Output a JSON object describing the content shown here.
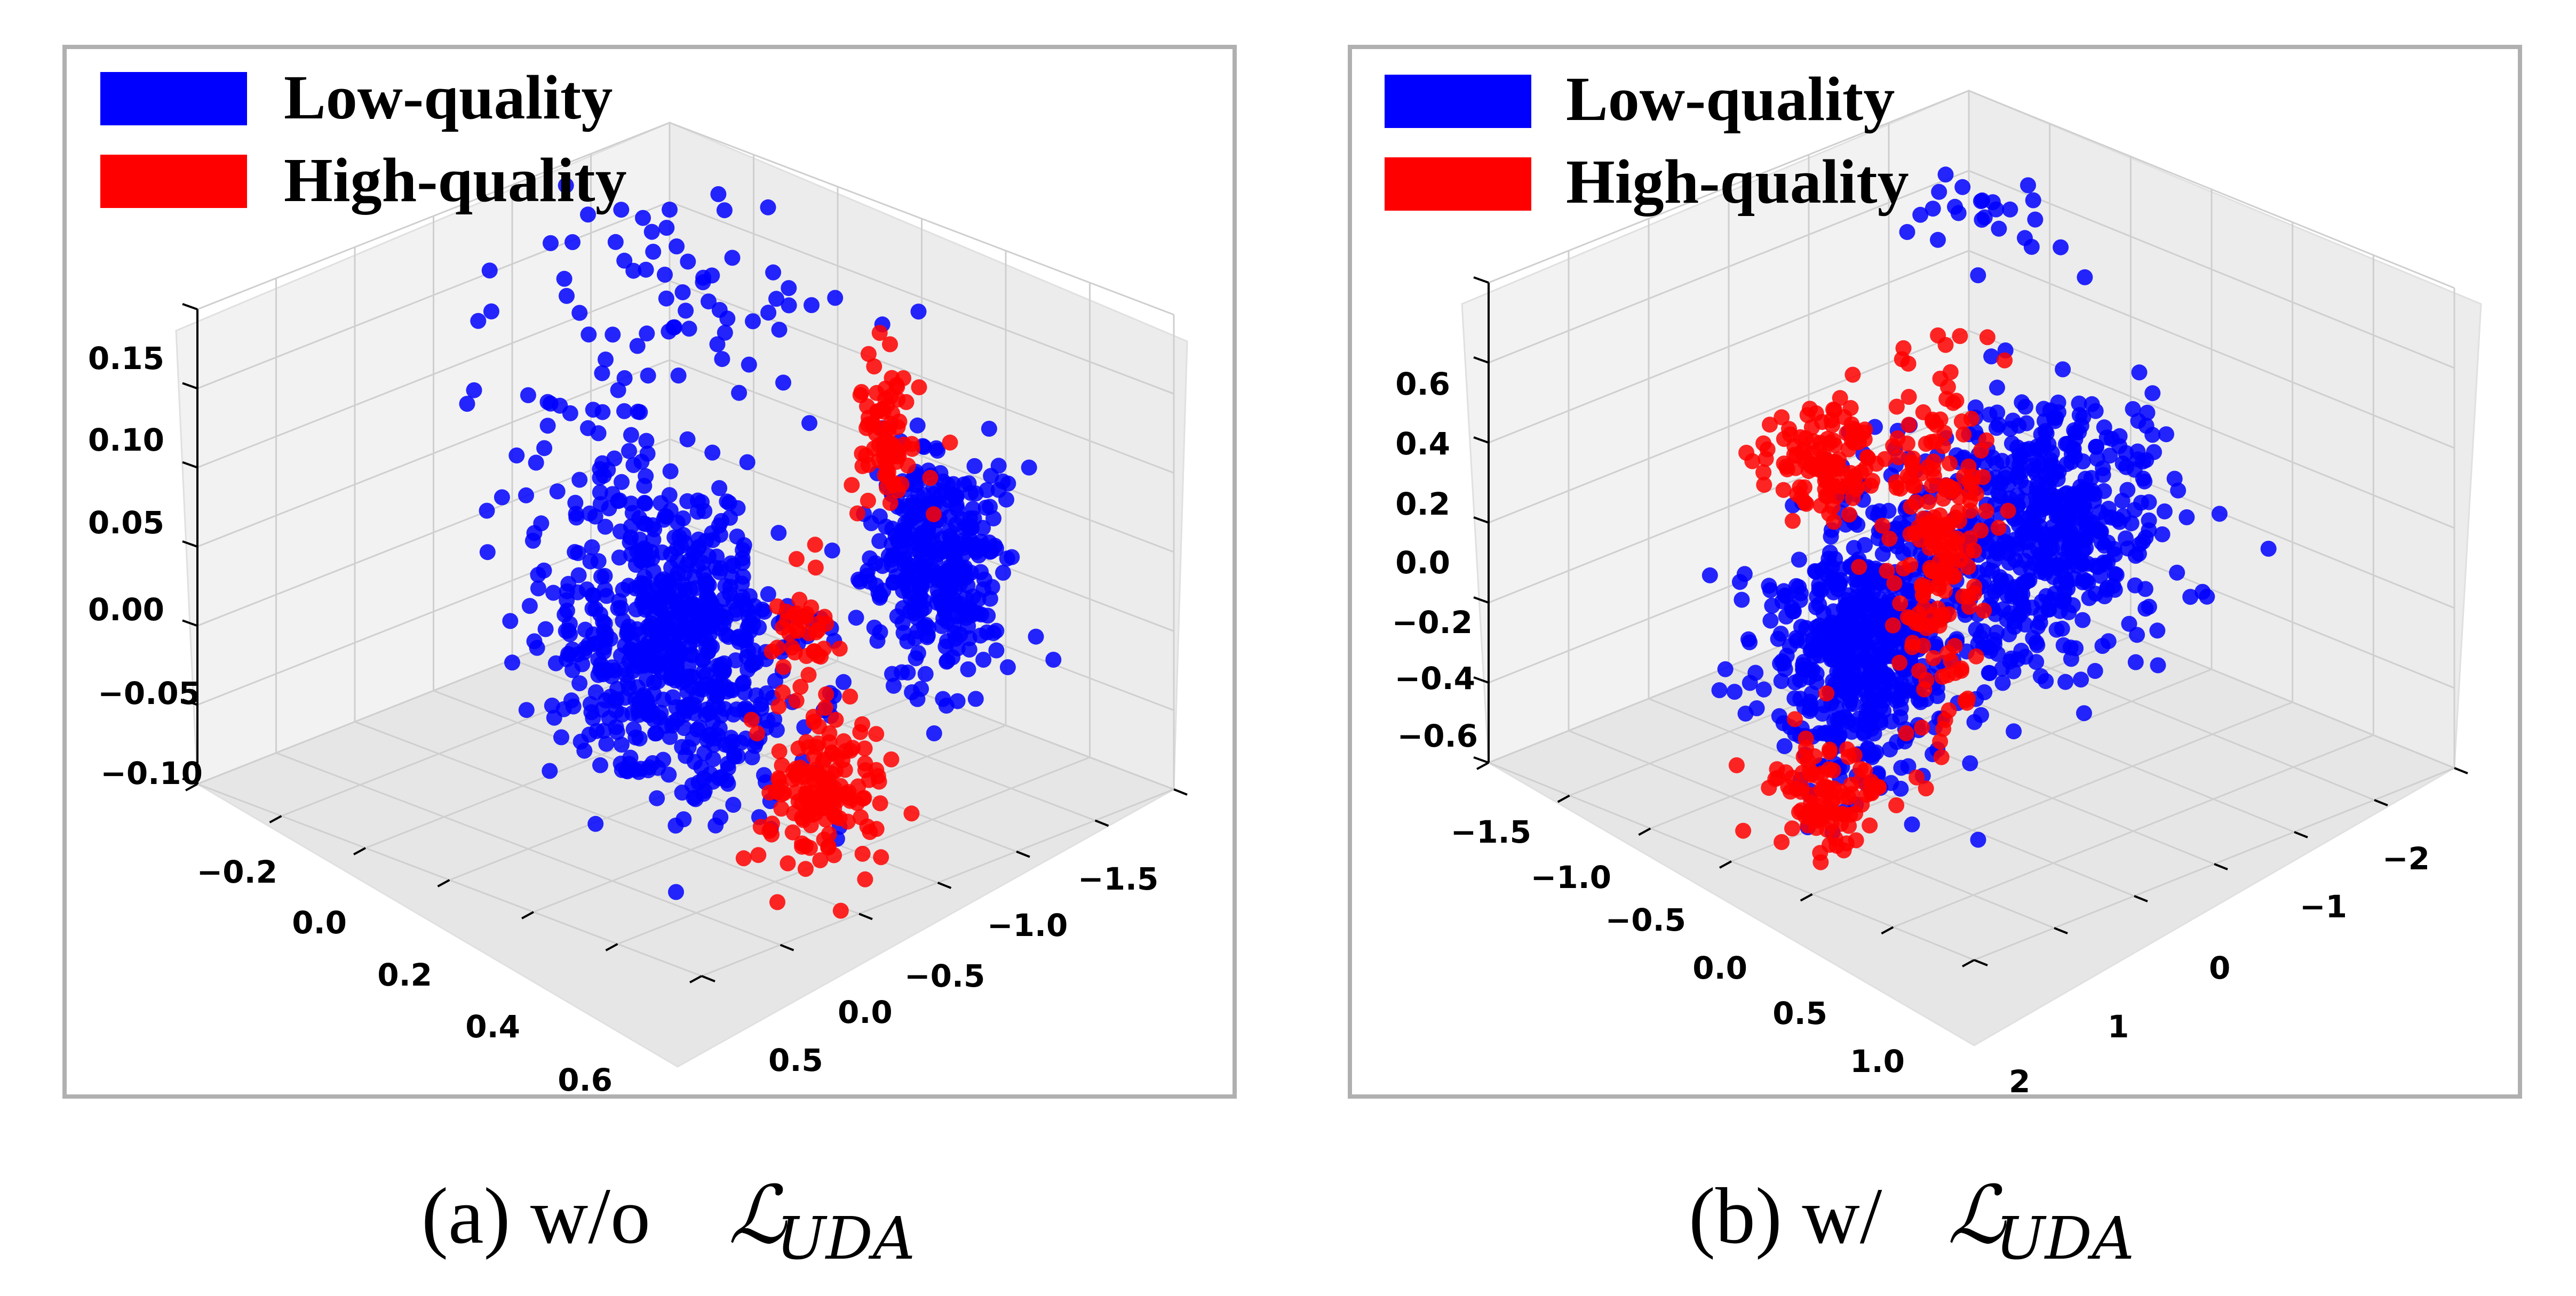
{
  "chart_data": [
    {
      "type": "scatter",
      "caption": {
        "prefix": "(a) w/o",
        "math": "ℒ",
        "sub": "UDA"
      },
      "legend": [
        {
          "label": "Low-quality",
          "color": "#0000ff"
        },
        {
          "label": "High-quality",
          "color": "#ff0000"
        }
      ],
      "z_ticks": [
        "0.15",
        "0.10",
        "0.05",
        "0.00",
        "−0.05",
        "−0.10"
      ],
      "x_ticks": [
        "−0.2",
        "0.0",
        "0.2",
        "0.4",
        "0.6"
      ],
      "y_ticks": [
        "−1.5",
        "−1.0",
        "−0.5",
        "0.0",
        "0.5"
      ],
      "xlim": [
        -0.3,
        0.7
      ],
      "ylim": [
        -1.7,
        0.7
      ],
      "zlim": [
        -0.1,
        0.15
      ],
      "series": [
        {
          "name": "Low-quality",
          "color": "#0000ff",
          "clusters": [
            {
              "x": 0.35,
              "y": -0.2,
              "z": 0.0,
              "sx": 0.07,
              "sy": 0.25,
              "sz": 0.035,
              "n": 650
            },
            {
              "x": 0.05,
              "y": 0.35,
              "z": 0.04,
              "sx": 0.05,
              "sy": 0.12,
              "sz": 0.03,
              "n": 350
            },
            {
              "x": -0.05,
              "y": -1.0,
              "z": 0.11,
              "sx": 0.15,
              "sy": 0.35,
              "sz": 0.02,
              "n": 60
            },
            {
              "x": 0.2,
              "y": -0.8,
              "z": 0.05,
              "sx": 0.12,
              "sy": 0.3,
              "sz": 0.04,
              "n": 70
            }
          ]
        },
        {
          "name": "High-quality",
          "color": "#ff0000",
          "clusters": [
            {
              "x": 0.38,
              "y": 0.55,
              "z": -0.04,
              "sx": 0.05,
              "sy": 0.08,
              "sz": 0.02,
              "n": 150
            },
            {
              "x": 0.02,
              "y": 0.05,
              "z": 0.09,
              "sx": 0.02,
              "sy": 0.06,
              "sz": 0.02,
              "n": 80
            },
            {
              "x": 0.2,
              "y": 0.05,
              "z": 0.0,
              "sx": 0.03,
              "sy": 0.05,
              "sz": 0.02,
              "n": 40
            }
          ]
        }
      ]
    },
    {
      "type": "scatter",
      "caption": {
        "prefix": "(b) w/",
        "math": "ℒ",
        "sub": "UDA"
      },
      "legend": [
        {
          "label": "Low-quality",
          "color": "#0000ff"
        },
        {
          "label": "High-quality",
          "color": "#ff0000"
        }
      ],
      "z_ticks": [
        "0.6",
        "0.4",
        "0.2",
        "0.0",
        "−0.2",
        "−0.4",
        "−0.6"
      ],
      "x_ticks": [
        "−1.5",
        "−1.0",
        "−0.5",
        "0.0",
        "0.5",
        "1.0"
      ],
      "y_ticks": [
        "−2",
        "−1",
        "0",
        "1",
        "2"
      ],
      "xlim": [
        -1.8,
        1.3
      ],
      "ylim": [
        -2.6,
        2.2
      ],
      "zlim": [
        -0.7,
        0.75
      ],
      "series": [
        {
          "name": "Low-quality",
          "color": "#0000ff",
          "clusters": [
            {
              "x": -0.4,
              "y": 0.3,
              "z": 0.05,
              "sx": 0.3,
              "sy": 0.35,
              "sz": 0.2,
              "n": 550
            },
            {
              "x": 0.6,
              "y": 0.0,
              "z": -0.15,
              "sx": 0.25,
              "sy": 0.3,
              "sz": 0.2,
              "n": 600
            },
            {
              "x": -1.2,
              "y": -1.5,
              "z": 0.6,
              "sx": 0.15,
              "sy": 0.3,
              "sz": 0.06,
              "n": 25
            }
          ]
        },
        {
          "name": "High-quality",
          "color": "#ff0000",
          "clusters": [
            {
              "x": 0.1,
              "y": 0.0,
              "z": 0.1,
              "sx": 0.15,
              "sy": 0.15,
              "sz": 0.3,
              "n": 200
            },
            {
              "x": 0.0,
              "y": -1.3,
              "z": 0.15,
              "sx": 0.15,
              "sy": 0.2,
              "sz": 0.08,
              "n": 120
            },
            {
              "x": 1.0,
              "y": 0.3,
              "z": -0.5,
              "sx": 0.12,
              "sy": 0.2,
              "sz": 0.08,
              "n": 100
            }
          ]
        }
      ]
    }
  ]
}
